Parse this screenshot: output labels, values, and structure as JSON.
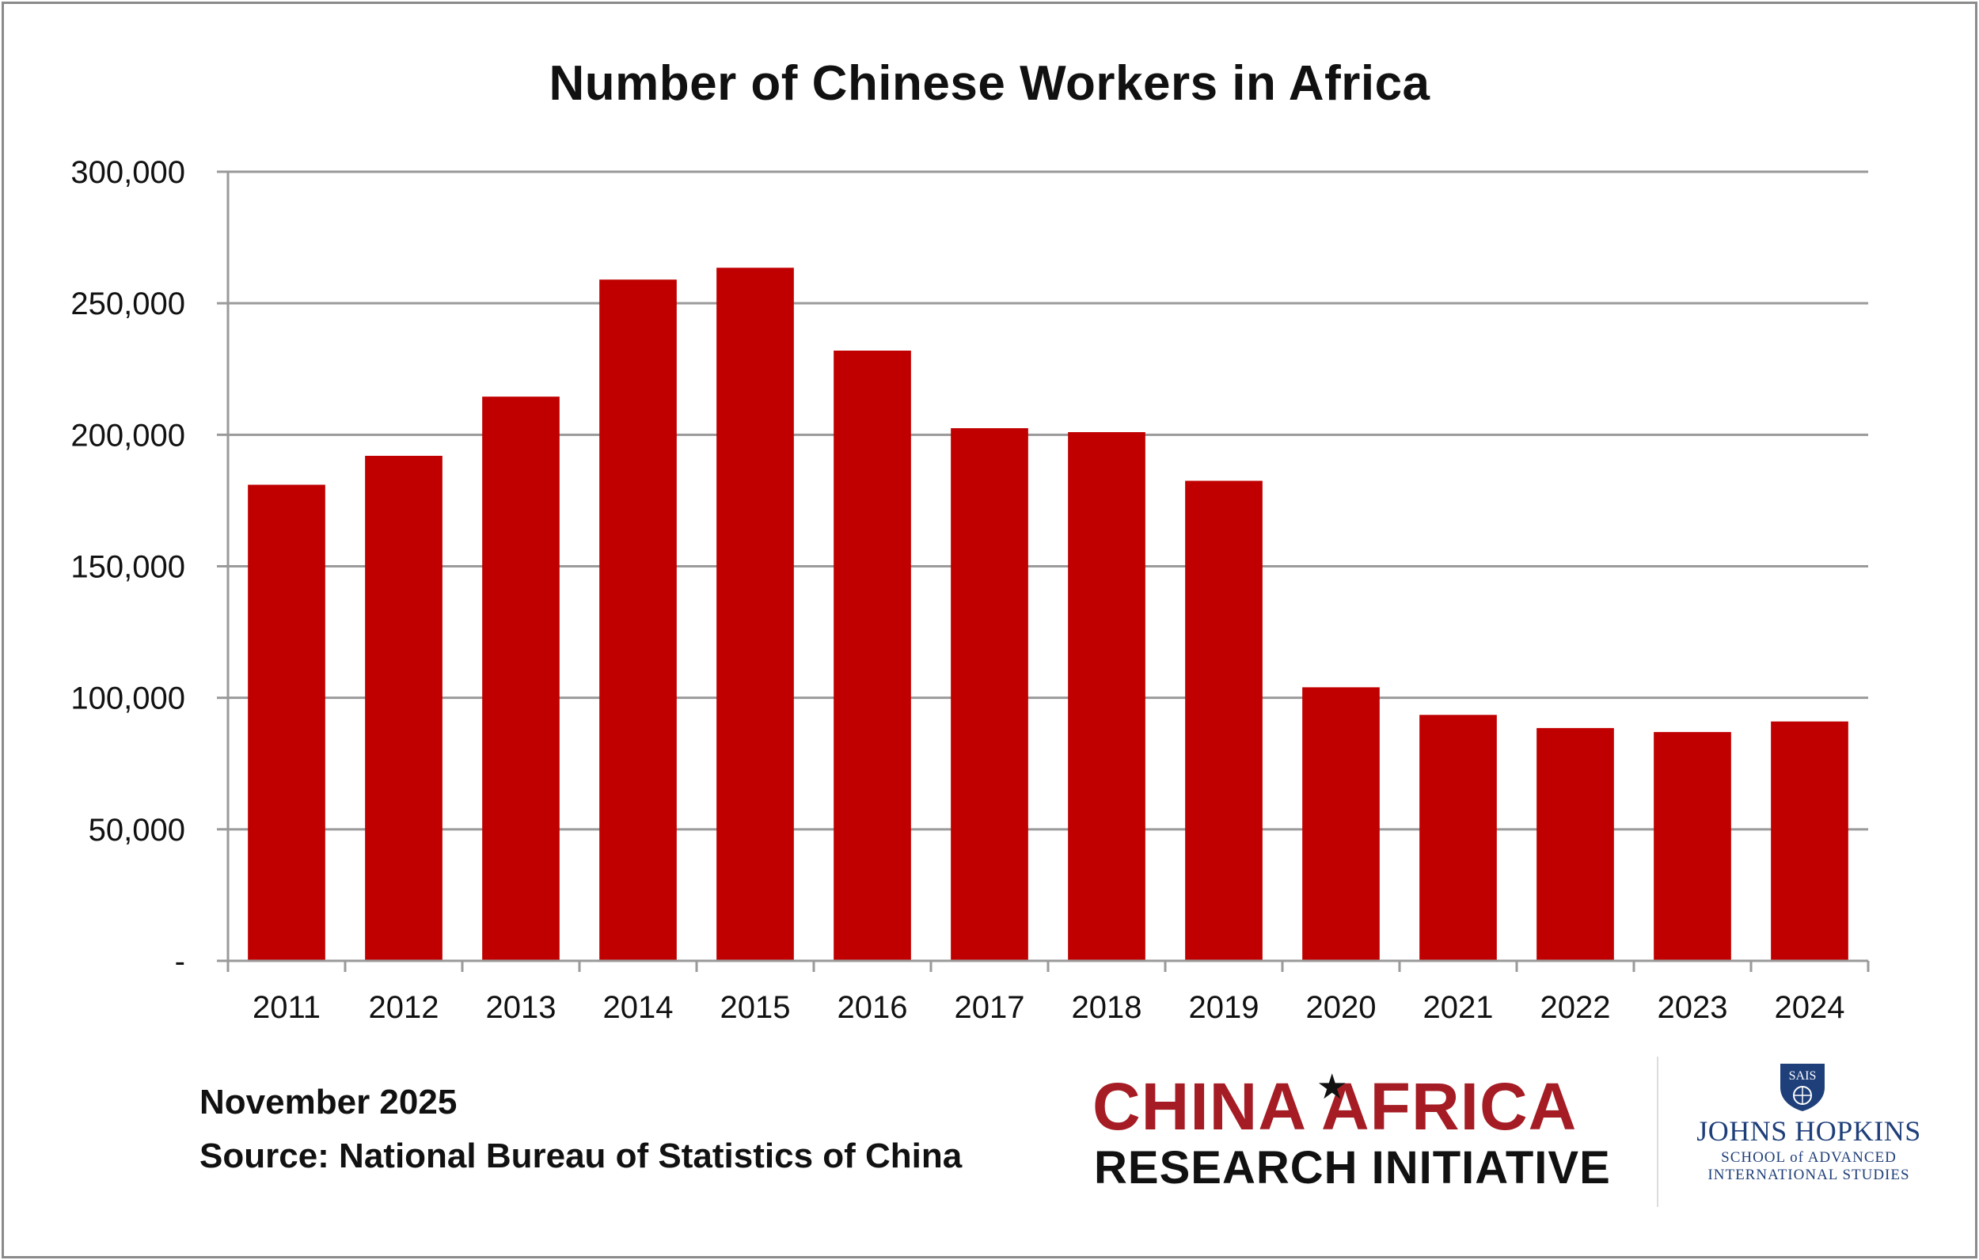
{
  "chart_data": {
    "type": "bar",
    "title": "Number of Chinese Workers in Africa",
    "xlabel": "",
    "ylabel": "",
    "categories": [
      "2011",
      "2012",
      "2013",
      "2014",
      "2015",
      "2016",
      "2017",
      "2018",
      "2019",
      "2020",
      "2021",
      "2022",
      "2023",
      "2024"
    ],
    "values": [
      181000,
      192000,
      214500,
      259000,
      263500,
      232000,
      202500,
      201000,
      182500,
      104000,
      93500,
      88500,
      87000,
      91000
    ],
    "ylim": [
      0,
      300000
    ],
    "yticks": [
      0,
      50000,
      100000,
      150000,
      200000,
      250000,
      300000
    ],
    "ytick_labels": [
      "-",
      "50,000",
      "100,000",
      "150,000",
      "200,000",
      "250,000",
      "300,000"
    ],
    "grid": true,
    "legend": "none",
    "colors": {
      "bar": "#c00000",
      "grid": "#9a9a9a",
      "axis": "#9a9a9a"
    }
  },
  "footer": {
    "date": "November 2025",
    "source": "Source: National Bureau of  Statistics of China"
  },
  "logos": {
    "cari_part1": "CHINA",
    "cari_part2": "AFRICA",
    "cari_line2": "RESEARCH INITIATIVE",
    "cari_star_icon": "star-icon",
    "sais_badge": "SAIS",
    "jhu_name": "JOHNS HOPKINS",
    "jhu_school_line1": "SCHOOL of ADVANCED",
    "jhu_school_line2": "INTERNATIONAL STUDIES"
  }
}
